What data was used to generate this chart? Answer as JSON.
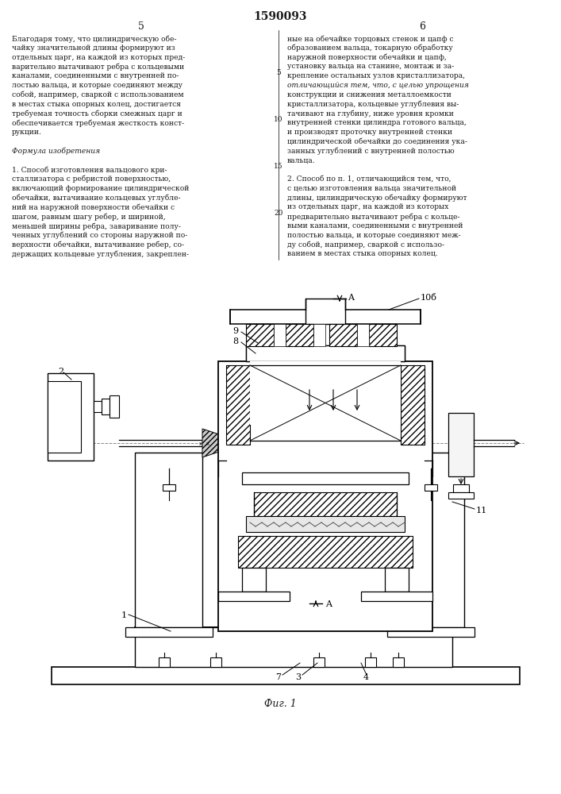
{
  "page_title": "1590093",
  "col_left_num": "5",
  "col_right_num": "6",
  "bg_color": "#ffffff",
  "text_color": "#1a1a1a",
  "left_col_text": [
    "Благодаря тому, что цилиндрическую обе-",
    "чайку значительной длины формируют из",
    "отдельных царг, на каждой из которых пред-",
    "варительно вытачивают ребра с кольцевыми",
    "каналами, соединенными с внутренней по-",
    "лостью вальца, и которые соединяют между",
    "собой, например, сваркой с использованием",
    "в местах стыка опорных колец, достигается",
    "требуемая точность сборки смежных царг и",
    "обеспечивается требуемая жесткость конст-",
    "рукции.",
    "",
    "Формула изобретения",
    "",
    "1. Способ изготовления вальцового кри-",
    "сталлизатора с ребристой поверхностью,",
    "включающий формирование цилиндрической",
    "обечайки, вытачивание кольцевых углубле-",
    "ний на наружной поверхности обечайки с",
    "шагом, равным шагу ребер, и шириной,",
    "меньшей ширины ребра, заваривание полу-",
    "ченных углублений со стороны наружной по-",
    "верхности обечайки, вытачивание ребер, со-",
    "держащих кольцевые углубления, закреплен-"
  ],
  "right_col_text": [
    "ные на обечайке торцовых стенок и цапф с",
    "образованием вальца, токарную обработку",
    "наружной поверхности обечайки и цапф,",
    "установку вальца на станине, монтаж и за-",
    "крепление остальных узлов кристаллизатора,",
    "отличающийся тем, что, с целью упрощения",
    "конструкции и снижения металлоемкости",
    "кристаллизатора, кольцевые углублевия вы-",
    "тачивают на глубину, ниже уровня кромки",
    "внутренней стенки цилиндра готового вальца,",
    "и производят проточку внутренней стенки",
    "цилиндрической обечайки до соединения ука-",
    "занных углублений с внутренней полостью",
    "вальца.",
    "",
    "2. Способ по п. 1, отличающийся тем, что,",
    "с целью изготовления вальца значительной",
    "длины, цилиндрическую обечайку формируют",
    "из отдельных царг, на каждой из которых",
    "предварительно вытачивают ребра с кольце-",
    "выми каналами, соединенными с внутренней",
    "полостью вальца, и которые соединяют меж-",
    "ду собой, например, сваркой с использо-",
    "ванием в местах стыка опорных колец."
  ],
  "fig_caption": "Фиг. 1",
  "lw": 0.9
}
